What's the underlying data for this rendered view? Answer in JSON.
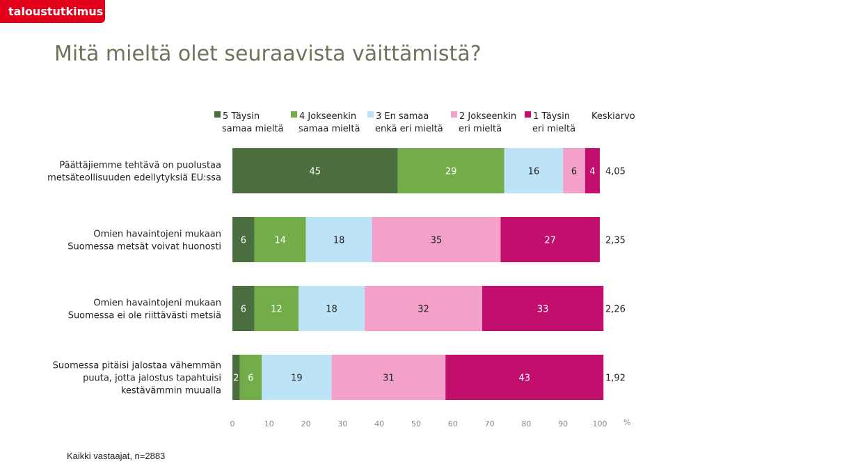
{
  "brand": "taloustutkimus",
  "title": "Mitä mieltä olet seuraavista väittämistä?",
  "footnote": "Kaikki vastaajat, n=2883",
  "chart_data": {
    "type": "bar",
    "orientation": "horizontal",
    "stacked": true,
    "categories": [
      [
        "Päättäjiemme tehtävä on puolustaa",
        "metsäteollisuuden edellytyksiä EU:ssa"
      ],
      [
        "Omien havaintojeni mukaan",
        "Suomessa metsät voivat huonosti"
      ],
      [
        "Omien havaintojeni mukaan",
        "Suomessa ei ole riittävästi metsiä"
      ],
      [
        "Suomessa pitäisi jalostaa vähemmän",
        "puuta, jotta jalostus tapahtuisi",
        "kestävämmin muualla"
      ]
    ],
    "series": [
      {
        "name": [
          "5 Täysin",
          "samaa mieltä"
        ],
        "color": "#4a6e3e",
        "values": [
          45,
          6,
          6,
          2
        ]
      },
      {
        "name": [
          "4 Jokseenkin",
          "samaa mieltä"
        ],
        "color": "#72ad4a",
        "values": [
          29,
          14,
          12,
          6
        ]
      },
      {
        "name": [
          "3 En samaa",
          "enkä eri mieltä"
        ],
        "color": "#bde3f7",
        "values": [
          16,
          18,
          18,
          19
        ]
      },
      {
        "name": [
          "2 Jokseenkin",
          "eri mieltä"
        ],
        "color": "#f3a1c8",
        "values": [
          6,
          35,
          32,
          31
        ]
      },
      {
        "name": [
          "1 Täysin",
          "eri mieltä"
        ],
        "color": "#c20e6d",
        "values": [
          4,
          27,
          33,
          43
        ]
      }
    ],
    "average_label": "Keskiarvo",
    "averages": [
      "4,05",
      "2,35",
      "2,26",
      "1,92"
    ],
    "xlim": [
      0,
      100
    ],
    "xticks": [
      "0",
      "10",
      "20",
      "30",
      "40",
      "50",
      "60",
      "70",
      "80",
      "90",
      "100"
    ],
    "xunit": "%",
    "legend_position": "top",
    "grid": false
  }
}
